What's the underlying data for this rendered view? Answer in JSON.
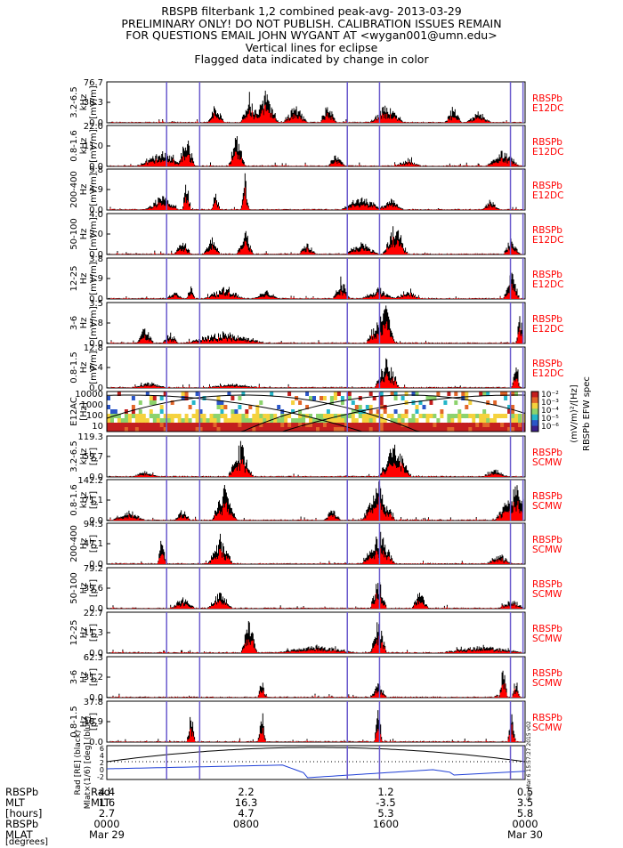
{
  "header": {
    "line1": "RBSPB filterbank 1,2 combined peak-avg- 2013-03-29",
    "line2": "PRELIMINARY ONLY! DO NOT PUBLISH. CALIBRATION ISSUES REMAIN",
    "line3": "FOR QUESTIONS EMAIL JOHN WYGANT AT <wygan001@umn.edu>",
    "line4": "Vertical lines for eclipse",
    "line5": "Flagged data indicated by change in color"
  },
  "colors": {
    "peak": "#000000",
    "avg": "#ff0000",
    "eclipse": "#6a5acd",
    "probe_label": "#ff0000",
    "mlat_line": "#1f3fd6"
  },
  "eclipse_fractions": [
    0.143,
    0.222,
    0.575,
    0.652,
    0.965,
    0.995
  ],
  "spectrogram": {
    "label": "E12AC\n[Hz]",
    "ticks": [
      "10000",
      "1000",
      "100",
      "10"
    ],
    "colorbar_ticks": [
      "10⁻²",
      "10⁻³",
      "10⁻⁴",
      "10⁻⁵",
      "10⁻⁶"
    ],
    "colorbar_title": "(mV/m)²/[Hz]",
    "colorbar_title2": "RBSPb EFW spec"
  },
  "mlat_panel": {
    "label": "Rad [RE] (black)\nMlat×(1/6) [deg] (blue)",
    "ticks": [
      "6",
      "4",
      "2",
      "0",
      "-2"
    ],
    "stamp": "Sun Mar 6 15:57:27 2015 v02"
  },
  "chart_data": [
    {
      "type": "line",
      "channel": "3.2-6.5 kHz",
      "ylabel": "3.2-6.5\nkHz\n[mV/m]",
      "yticks": [
        "76.7",
        "38.3",
        "0.0"
      ],
      "ylim": [
        0,
        76.7
      ],
      "probe": "RBSPb",
      "sensor": "E12DC",
      "peak_events": [
        [
          0.26,
          0.55,
          0.02
        ],
        [
          0.34,
          0.82,
          0.02
        ],
        [
          0.38,
          0.9,
          0.03
        ],
        [
          0.45,
          0.5,
          0.03
        ],
        [
          0.53,
          0.55,
          0.02
        ],
        [
          0.67,
          0.5,
          0.04
        ],
        [
          0.83,
          0.45,
          0.02
        ],
        [
          0.89,
          0.3,
          0.03
        ]
      ]
    },
    {
      "type": "line",
      "channel": "0.8-1.6 kHz",
      "ylabel": "0.8-1.6\nkHz\n[mV/m]",
      "yticks": [
        "22.0",
        "11.0",
        "0.0"
      ],
      "ylim": [
        0,
        22.0
      ],
      "probe": "RBSPb",
      "sensor": "E12DC",
      "peak_events": [
        [
          0.13,
          0.4,
          0.06
        ],
        [
          0.19,
          0.9,
          0.02
        ],
        [
          0.31,
          0.95,
          0.02
        ],
        [
          0.55,
          0.4,
          0.02
        ],
        [
          0.72,
          0.2,
          0.03
        ],
        [
          0.95,
          0.45,
          0.04
        ]
      ]
    },
    {
      "type": "line",
      "channel": "200-400 Hz",
      "ylabel": "200-400\nHz\n[mV/m]",
      "yticks": [
        "9.8",
        "4.9",
        "0.0"
      ],
      "ylim": [
        0,
        9.8
      ],
      "probe": "RBSPb",
      "sensor": "E12DC",
      "peak_events": [
        [
          0.13,
          0.4,
          0.04
        ],
        [
          0.19,
          0.9,
          0.01
        ],
        [
          0.26,
          0.55,
          0.01
        ],
        [
          0.33,
          0.95,
          0.01
        ],
        [
          0.61,
          0.35,
          0.05
        ],
        [
          0.68,
          0.3,
          0.03
        ],
        [
          0.92,
          0.3,
          0.02
        ]
      ]
    },
    {
      "type": "line",
      "channel": "50-100 Hz",
      "ylabel": "50-100\nHz\n[mV/m]",
      "yticks": [
        "4.0",
        "2.0",
        "0.0"
      ],
      "ylim": [
        0,
        4.0
      ],
      "probe": "RBSPb",
      "sensor": "E12DC",
      "peak_events": [
        [
          0.18,
          0.45,
          0.02
        ],
        [
          0.25,
          0.5,
          0.02
        ],
        [
          0.33,
          0.7,
          0.02
        ],
        [
          0.48,
          0.35,
          0.02
        ],
        [
          0.61,
          0.35,
          0.04
        ],
        [
          0.69,
          0.95,
          0.03
        ],
        [
          0.97,
          0.5,
          0.02
        ]
      ]
    },
    {
      "type": "line",
      "channel": "12-25 Hz",
      "ylabel": "12-25\nHz\n[mV/m]",
      "yticks": [
        "3.8",
        "1.9",
        "0.0"
      ],
      "ylim": [
        0,
        3.8
      ],
      "probe": "RBSPb",
      "sensor": "E12DC",
      "peak_events": [
        [
          0.16,
          0.2,
          0.02
        ],
        [
          0.2,
          0.45,
          0.01
        ],
        [
          0.28,
          0.3,
          0.05
        ],
        [
          0.38,
          0.25,
          0.03
        ],
        [
          0.56,
          0.6,
          0.02
        ],
        [
          0.65,
          0.3,
          0.04
        ],
        [
          0.72,
          0.25,
          0.03
        ],
        [
          0.97,
          0.75,
          0.02
        ]
      ]
    },
    {
      "type": "line",
      "channel": "3-6 Hz",
      "ylabel": "3-6\nHz\n[mV/m]",
      "yticks": [
        "3.5",
        "1.8",
        "0.0"
      ],
      "ylim": [
        0,
        3.5
      ],
      "probe": "RBSPb",
      "sensor": "E12DC",
      "peak_events": [
        [
          0.09,
          0.55,
          0.02
        ],
        [
          0.15,
          0.3,
          0.02
        ],
        [
          0.28,
          0.3,
          0.1
        ],
        [
          0.65,
          0.75,
          0.03
        ],
        [
          0.67,
          0.85,
          0.02
        ],
        [
          0.99,
          0.95,
          0.01
        ]
      ]
    },
    {
      "type": "line",
      "channel": "0.8-1.5 Hz",
      "ylabel": "0.8-1.5\nHz\n[mV/m]",
      "yticks": [
        "12.8",
        "6.4",
        "0.0"
      ],
      "ylim": [
        0,
        12.8
      ],
      "probe": "RBSPb",
      "sensor": "E12DC",
      "peak_events": [
        [
          0.1,
          0.15,
          0.04
        ],
        [
          0.3,
          0.12,
          0.06
        ],
        [
          0.67,
          0.8,
          0.03
        ],
        [
          0.98,
          0.95,
          0.01
        ]
      ]
    },
    {
      "type": "line",
      "channel": "3.2-6.5 kHz",
      "ylabel": "3.2-6.5\nkHz\n[pT]",
      "yticks": [
        "119.3",
        "59.7",
        "0.0"
      ],
      "ylim": [
        0,
        119.3
      ],
      "probe": "RBSPb",
      "sensor": "SCMW",
      "peak_events": [
        [
          0.32,
          0.95,
          0.03
        ],
        [
          0.69,
          0.98,
          0.04
        ],
        [
          0.09,
          0.15,
          0.03
        ],
        [
          0.93,
          0.2,
          0.03
        ]
      ]
    },
    {
      "type": "line",
      "channel": "0.8-1.6 kHz",
      "ylabel": "0.8-1.6\nkHz\n[pT]",
      "yticks": [
        "142.2",
        "71.1",
        "0.0"
      ],
      "ylim": [
        0,
        142.2
      ],
      "probe": "RBSPb",
      "sensor": "SCMW",
      "peak_events": [
        [
          0.28,
          0.95,
          0.03
        ],
        [
          0.65,
          0.98,
          0.04
        ],
        [
          0.98,
          0.98,
          0.05
        ],
        [
          0.05,
          0.25,
          0.04
        ],
        [
          0.18,
          0.3,
          0.02
        ],
        [
          0.54,
          0.35,
          0.02
        ]
      ]
    },
    {
      "type": "line",
      "channel": "200-400 Hz",
      "ylabel": "200-400\nHz\n[pT]",
      "yticks": [
        "94.3",
        "47.1",
        "0.0"
      ],
      "ylim": [
        0,
        94.3
      ],
      "probe": "RBSPb",
      "sensor": "SCMW",
      "peak_events": [
        [
          0.13,
          0.8,
          0.01
        ],
        [
          0.27,
          0.8,
          0.03
        ],
        [
          0.65,
          0.95,
          0.04
        ],
        [
          0.94,
          0.3,
          0.03
        ]
      ]
    },
    {
      "type": "line",
      "channel": "50-100 Hz",
      "ylabel": "50-100\nHz\n[pT]",
      "yticks": [
        "79.2",
        "39.6",
        "0.0"
      ],
      "ylim": [
        0,
        79.2
      ],
      "probe": "RBSPb",
      "sensor": "SCMW",
      "peak_events": [
        [
          0.18,
          0.3,
          0.03
        ],
        [
          0.27,
          0.45,
          0.03
        ],
        [
          0.65,
          0.9,
          0.02
        ],
        [
          0.75,
          0.5,
          0.02
        ],
        [
          0.97,
          0.25,
          0.03
        ]
      ]
    },
    {
      "type": "line",
      "channel": "12-25 Hz",
      "ylabel": "12-25\nHz\n[pT]",
      "yticks": [
        "22.7",
        "11.3",
        "0.0"
      ],
      "ylim": [
        0,
        22.7
      ],
      "probe": "RBSPb",
      "sensor": "SCMW",
      "peak_events": [
        [
          0.34,
          0.95,
          0.02
        ],
        [
          0.65,
          0.95,
          0.02
        ],
        [
          0.5,
          0.2,
          0.1
        ],
        [
          0.9,
          0.2,
          0.1
        ]
      ]
    },
    {
      "type": "line",
      "channel": "3-6 Hz",
      "ylabel": "3-6\nHz\n[pT]",
      "yticks": [
        "62.3",
        "31.2",
        "0.0"
      ],
      "ylim": [
        0,
        62.3
      ],
      "probe": "RBSPb",
      "sensor": "SCMW",
      "peak_events": [
        [
          0.37,
          0.5,
          0.01
        ],
        [
          0.65,
          0.4,
          0.02
        ],
        [
          0.95,
          0.95,
          0.01
        ],
        [
          0.98,
          0.55,
          0.01
        ]
      ]
    },
    {
      "type": "line",
      "channel": "0.8-1.5 Hz",
      "ylabel": "0.8-1.5\nHz\n[pT]",
      "yticks": [
        "37.8",
        "18.9",
        "0.0"
      ],
      "ylim": [
        0,
        37.8
      ],
      "probe": "RBSPb",
      "sensor": "SCMW",
      "peak_events": [
        [
          0.2,
          0.9,
          0.01
        ],
        [
          0.37,
          0.95,
          0.01
        ],
        [
          0.65,
          0.95,
          0.01
        ],
        [
          0.97,
          0.8,
          0.01
        ]
      ]
    }
  ],
  "footer": {
    "probe": "RBSPb",
    "row_labels": [
      "Rad",
      "MLT",
      "[hours]",
      "RBSPb",
      "MLAT",
      "[degrees]"
    ],
    "columns": [
      {
        "frac": 0.0,
        "rad": "4.4",
        "mlt": "1.6",
        "mlat": "2.7",
        "time": "0000",
        "date": "Mar 29"
      },
      {
        "frac": 0.333,
        "rad": "2.2",
        "mlt": "16.3",
        "mlat": "4.7",
        "time": "0800",
        "date": ""
      },
      {
        "frac": 0.667,
        "rad": "1.2",
        "mlt": "-3.5",
        "mlat": "5.3",
        "time": "1600",
        "date": ""
      },
      {
        "frac": 1.0,
        "rad": "0.5",
        "mlt": "3.5",
        "mlat": "5.8",
        "time": "0000",
        "date": "Mar 30"
      }
    ]
  }
}
